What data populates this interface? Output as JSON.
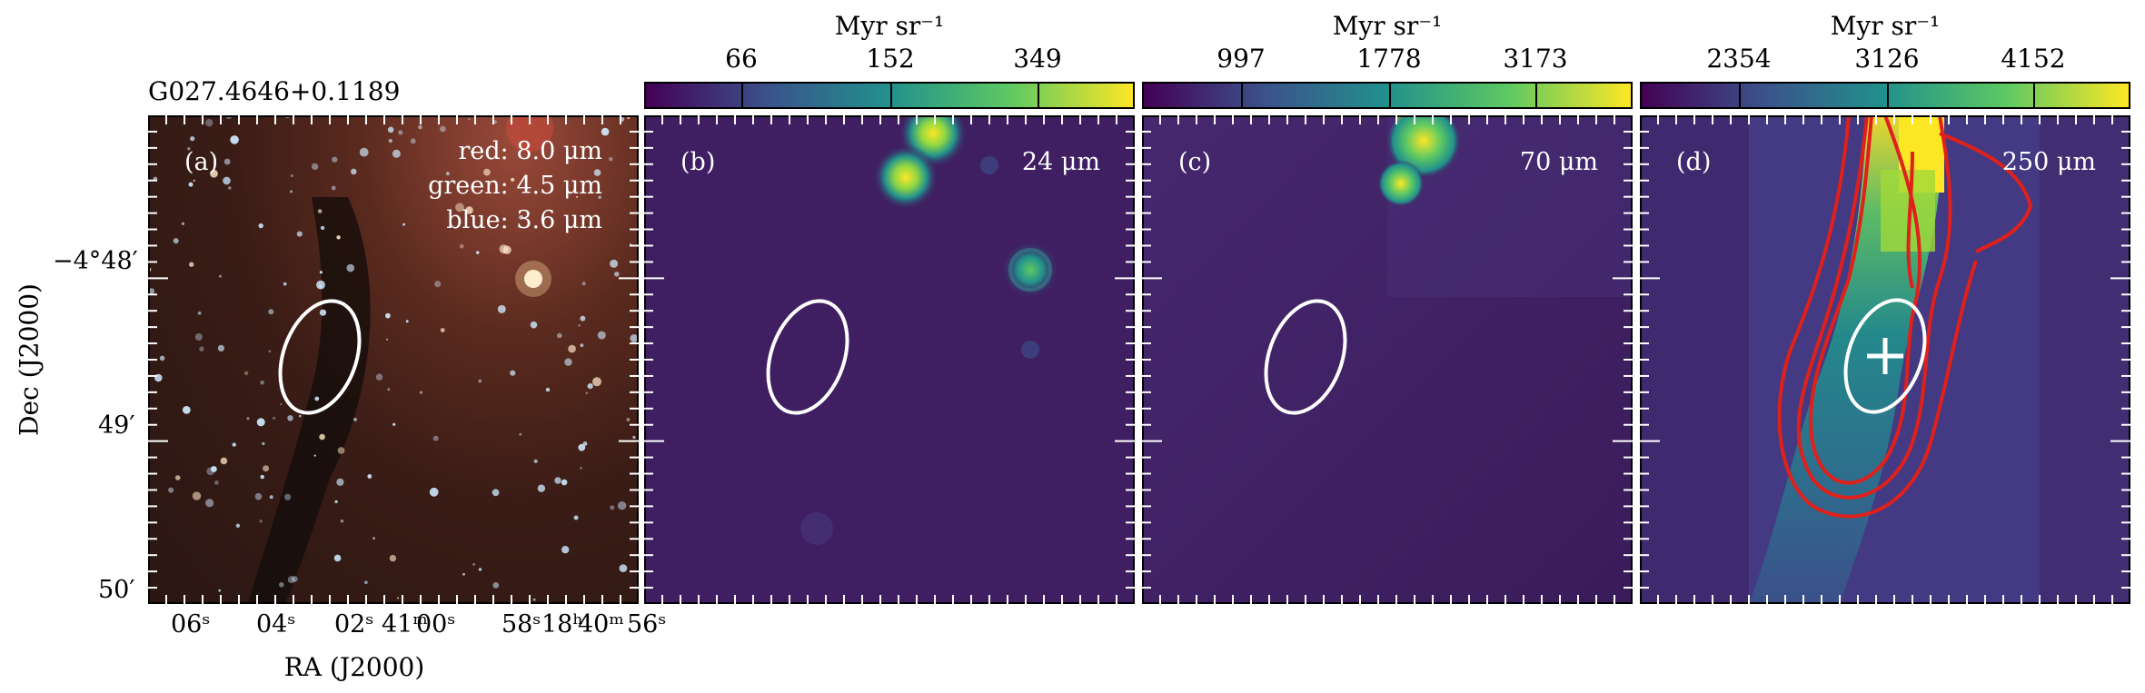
{
  "source_name": "G027.4646+0.1189",
  "colorbars": [
    {
      "unit": "Myr sr⁻¹",
      "ticks": [
        "66",
        "152",
        "349"
      ]
    },
    {
      "unit": "Myr sr⁻¹",
      "ticks": [
        "997",
        "1778",
        "3173"
      ]
    },
    {
      "unit": "Myr sr⁻¹",
      "ticks": [
        "2354",
        "3126",
        "4152"
      ]
    }
  ],
  "panels": [
    {
      "tag": "(a)",
      "bands": [
        "red: 8.0 μm",
        "green: 4.5 μm",
        "blue: 3.6 μm"
      ]
    },
    {
      "tag": "(b)",
      "band": "24 μm"
    },
    {
      "tag": "(c)",
      "band": "70 μm"
    },
    {
      "tag": "(d)",
      "band": "250 μm"
    }
  ],
  "axes": {
    "ylabel": "Dec (J2000)",
    "xlabel": "RA (J2000)",
    "yticks": [
      "−4°48′",
      "49′",
      "50′"
    ],
    "xticks": [
      "06ˢ",
      "04ˢ",
      "02ˢ",
      "41ᵐ",
      "00ˢ",
      "58ˢ",
      "18ʰ",
      "40ᵐ",
      "56ˢ"
    ]
  },
  "colors": {
    "ellipse": "#ffffff",
    "contours": "#e0201a",
    "colormap": "viridis"
  }
}
